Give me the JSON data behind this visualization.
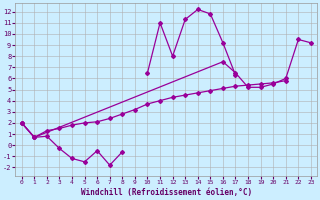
{
  "xlabel": "Windchill (Refroidissement éolien,°C)",
  "background_color": "#cceeff",
  "grid_color": "#b0b0b0",
  "line_color": "#990099",
  "x_ticks": [
    0,
    1,
    2,
    3,
    4,
    5,
    6,
    7,
    8,
    9,
    10,
    11,
    12,
    13,
    14,
    15,
    16,
    17,
    18,
    19,
    20,
    21,
    22,
    23
  ],
  "y_ticks": [
    -2,
    -1,
    0,
    1,
    2,
    3,
    4,
    5,
    6,
    7,
    8,
    9,
    10,
    11,
    12
  ],
  "ylim": [
    -2.8,
    12.8
  ],
  "xlim": [
    -0.5,
    23.5
  ],
  "series1_x": [
    0,
    1,
    2,
    3,
    4,
    5,
    6,
    7,
    8,
    9,
    10,
    11,
    12,
    13,
    14,
    15,
    16,
    17
  ],
  "series1_y": [
    2.0,
    0.7,
    0.8,
    -0.3,
    -1.2,
    -1.5,
    -0.5,
    -1.8,
    -0.6,
    null,
    6.5,
    11.0,
    8.0,
    11.3,
    12.2,
    11.8,
    9.2,
    6.3
  ],
  "series2_x": [
    0,
    1,
    2,
    3,
    4,
    5,
    6,
    7,
    8,
    9,
    10,
    11,
    12,
    13,
    14,
    15,
    16,
    17,
    18,
    19,
    20,
    21
  ],
  "series2_y": [
    2.0,
    0.7,
    1.3,
    1.5,
    1.8,
    2.0,
    2.1,
    2.4,
    2.8,
    3.2,
    3.7,
    4.0,
    4.3,
    4.5,
    4.7,
    4.9,
    5.1,
    5.3,
    5.4,
    5.5,
    5.6,
    5.8
  ],
  "series3_x": [
    0,
    1,
    16,
    17,
    18,
    19,
    20,
    21,
    22,
    23
  ],
  "series3_y": [
    2.0,
    0.7,
    7.5,
    6.5,
    5.2,
    5.2,
    5.5,
    6.0,
    9.5,
    9.2
  ]
}
